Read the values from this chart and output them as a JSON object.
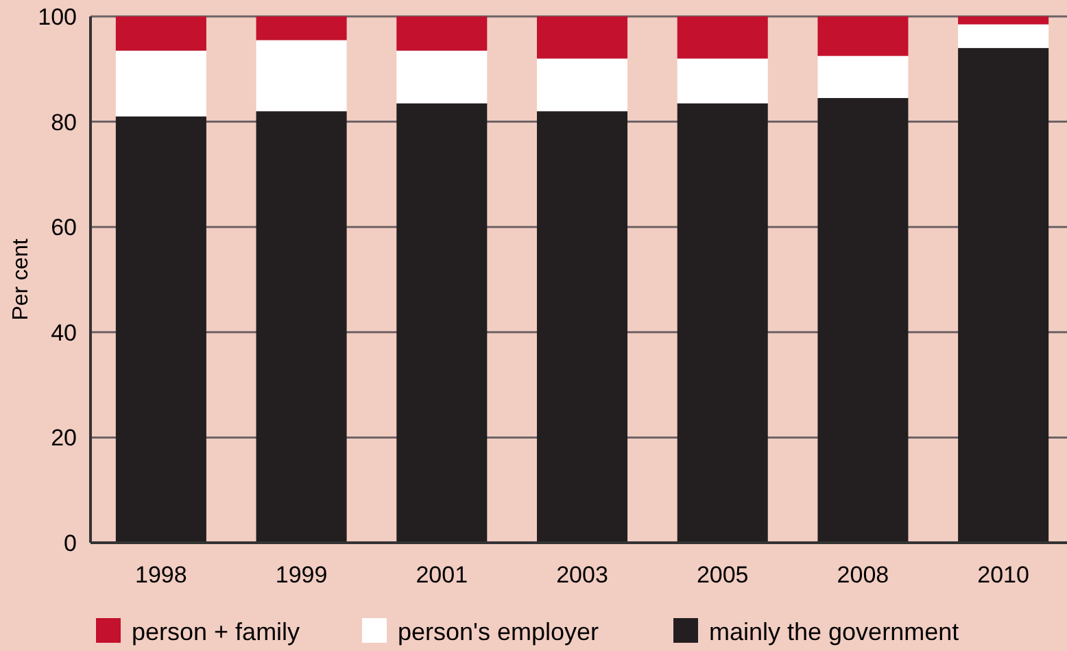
{
  "chart_data": {
    "type": "bar",
    "stacked": true,
    "ylabel": "Per cent",
    "categories": [
      "1998",
      "1999",
      "2001",
      "2003",
      "2005",
      "2008",
      "2010"
    ],
    "series": [
      {
        "name": "mainly the government",
        "color": "#231f20",
        "values": [
          81,
          82,
          83.5,
          82,
          83.5,
          84.5,
          94
        ]
      },
      {
        "name": "person's employer",
        "color": "#ffffff",
        "values": [
          12.5,
          13.5,
          10,
          10,
          8.5,
          8,
          4.5
        ]
      },
      {
        "name": "person + family",
        "color": "#c3112e",
        "values": [
          6.5,
          4.5,
          6.5,
          8,
          8,
          7.5,
          1.5
        ]
      }
    ],
    "ylim": [
      0,
      100
    ],
    "yticks": [
      0,
      20,
      40,
      60,
      80,
      100
    ],
    "grid": "y",
    "legend": "bottom"
  }
}
